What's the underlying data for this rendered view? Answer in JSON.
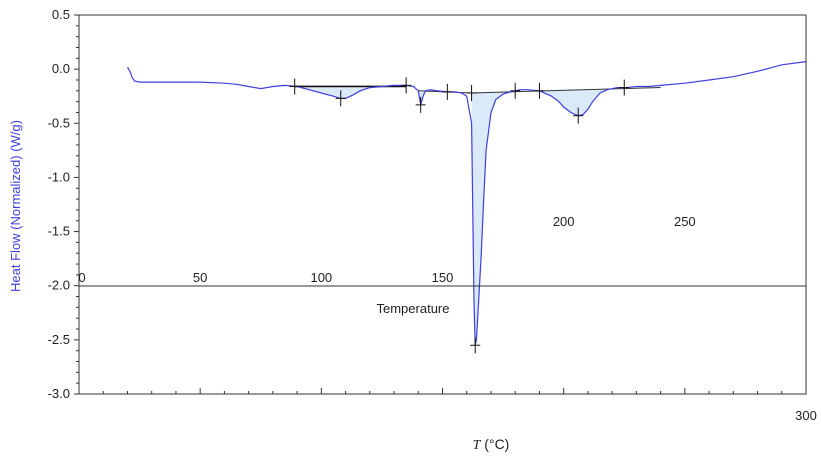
{
  "chart_data": {
    "type": "line",
    "ylabel": "Heat Flow (Normalized)  (W/g)",
    "xlabel_symbol": "T",
    "xlabel_unit": " (°C)",
    "inner_label": "Temperature",
    "ylim": [
      -3.0,
      0.5
    ],
    "y_ticks": [
      "0.5",
      "0.0",
      "-0.5",
      "-1.0",
      "-1.5",
      "-2.0",
      "-2.5",
      "-3.0"
    ],
    "x_ticks": [
      "0",
      "50",
      "100",
      "150",
      "200",
      "250",
      "300"
    ],
    "xlim": [
      0,
      300
    ],
    "series_color": "#3f3fe0",
    "fill_color": "#dbeaf8",
    "series": [
      {
        "x": [
          20,
          21,
          22,
          23,
          25,
          30,
          40,
          50,
          60,
          65,
          70,
          75,
          80,
          85,
          90,
          95,
          100,
          105,
          108,
          110,
          113,
          116,
          120,
          125,
          130,
          135,
          138,
          140,
          141,
          142,
          143,
          145,
          148,
          152,
          155,
          158,
          160,
          162,
          163,
          163.5,
          164,
          165,
          166,
          167,
          168,
          170,
          172,
          175,
          178,
          182,
          185,
          190,
          195,
          198,
          200,
          203,
          206,
          208,
          210,
          212,
          215,
          218,
          222,
          226,
          230,
          235,
          240,
          250,
          260,
          270,
          280,
          290,
          300
        ],
        "y": [
          0.02,
          -0.02,
          -0.08,
          -0.11,
          -0.12,
          -0.12,
          -0.12,
          -0.12,
          -0.13,
          -0.14,
          -0.16,
          -0.18,
          -0.16,
          -0.15,
          -0.16,
          -0.19,
          -0.22,
          -0.25,
          -0.27,
          -0.27,
          -0.24,
          -0.2,
          -0.17,
          -0.16,
          -0.15,
          -0.15,
          -0.16,
          -0.2,
          -0.33,
          -0.25,
          -0.2,
          -0.19,
          -0.2,
          -0.21,
          -0.21,
          -0.22,
          -0.25,
          -0.5,
          -2.15,
          -2.55,
          -2.5,
          -2.1,
          -1.7,
          -1.2,
          -0.75,
          -0.4,
          -0.28,
          -0.23,
          -0.21,
          -0.19,
          -0.19,
          -0.2,
          -0.25,
          -0.3,
          -0.35,
          -0.4,
          -0.43,
          -0.42,
          -0.37,
          -0.3,
          -0.22,
          -0.19,
          -0.17,
          -0.17,
          -0.16,
          -0.16,
          -0.15,
          -0.13,
          -0.1,
          -0.07,
          -0.02,
          0.04,
          0.07
        ]
      }
    ],
    "baselines": [
      {
        "x": [
          89,
          135
        ],
        "y": [
          -0.16,
          -0.16
        ]
      },
      {
        "x": [
          140,
          162
        ],
        "y": [
          -0.2,
          -0.22
        ]
      },
      {
        "x": [
          162,
          240
        ],
        "y": [
          -0.22,
          -0.17
        ]
      }
    ],
    "markers": [
      {
        "x": 89,
        "y": -0.16
      },
      {
        "x": 108,
        "y": -0.27
      },
      {
        "x": 135,
        "y": -0.15
      },
      {
        "x": 141,
        "y": -0.33
      },
      {
        "x": 152,
        "y": -0.21
      },
      {
        "x": 162,
        "y": -0.22
      },
      {
        "x": 163.5,
        "y": -2.55
      },
      {
        "x": 180,
        "y": -0.2
      },
      {
        "x": 190,
        "y": -0.2
      },
      {
        "x": 206,
        "y": -0.43
      },
      {
        "x": 225,
        "y": -0.17
      }
    ],
    "fill_regions": [
      [
        89,
        135
      ],
      [
        140,
        150
      ],
      [
        162,
        180
      ],
      [
        190,
        226
      ]
    ]
  }
}
